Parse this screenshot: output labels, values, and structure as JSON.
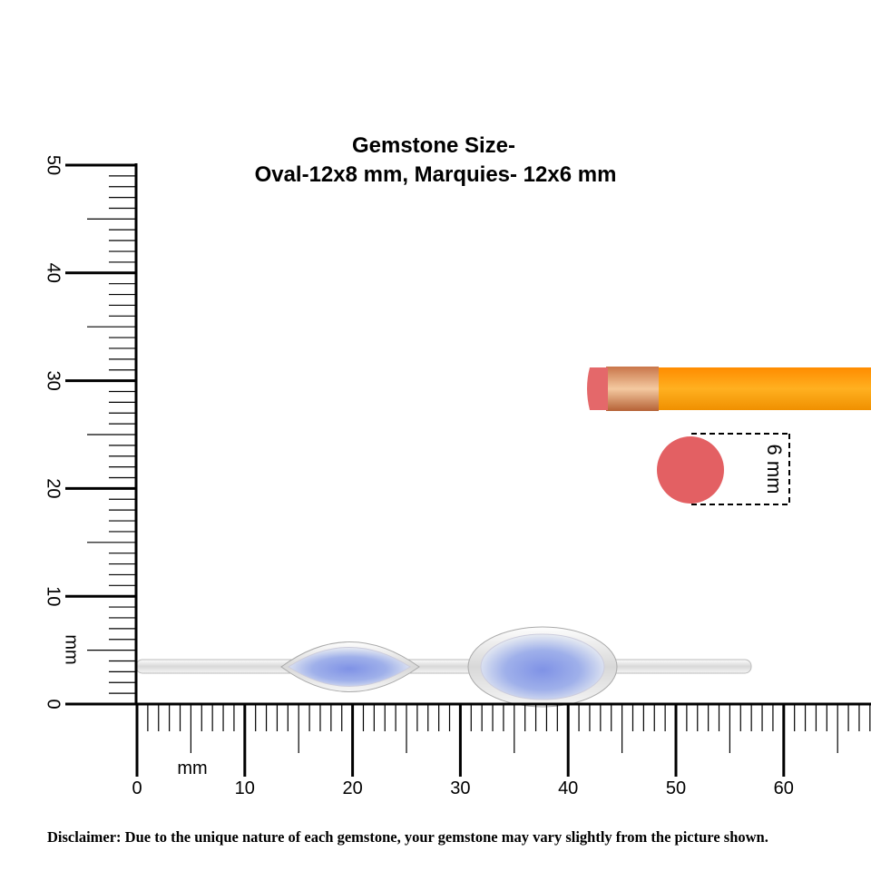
{
  "title": [
    "Gemstone Size-",
    "Oval-12x8 mm, Marquies- 12x6 mm"
  ],
  "vertical_ruler": {
    "unit": "mm",
    "labels": [
      0,
      10,
      20,
      30,
      40,
      50
    ]
  },
  "horizontal_ruler": {
    "unit": "mm",
    "labels": [
      0,
      10,
      20,
      30,
      40,
      50,
      60
    ]
  },
  "pencil_size_label": "6 mm",
  "disclaimer": "Disclaimer: Due to the unique nature of each gemstone, your gemstone may vary slightly from the picture shown."
}
